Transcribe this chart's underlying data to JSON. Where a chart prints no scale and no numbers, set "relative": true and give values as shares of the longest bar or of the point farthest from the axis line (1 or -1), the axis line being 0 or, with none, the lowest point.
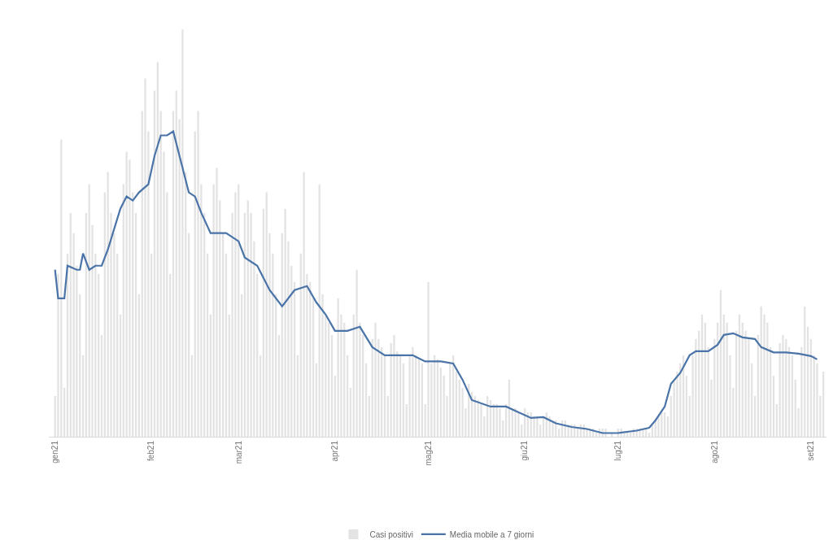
{
  "chart_data": {
    "type": "bar",
    "relative": true,
    "legend": "bottom",
    "grid": false,
    "xlim": [
      "2020-12-30",
      "2021-09-06"
    ],
    "xticks": [
      {
        "value": "2021-01-01",
        "label": "gen21"
      },
      {
        "value": "2021-02-01",
        "label": "feb21"
      },
      {
        "value": "2021-03-01",
        "label": "mar21"
      },
      {
        "value": "2021-04-01",
        "label": "apr21"
      },
      {
        "value": "2021-05-01",
        "label": "mag21"
      },
      {
        "value": "2021-06-01",
        "label": "giu21"
      },
      {
        "value": "2021-07-01",
        "label": "lug21"
      },
      {
        "value": "2021-08-01",
        "label": "ago21"
      },
      {
        "value": "2021-09-01",
        "label": "set21"
      }
    ],
    "x": [
      "2021-01-01",
      "2021-01-02",
      "2021-01-03",
      "2021-01-04",
      "2021-01-05",
      "2021-01-06",
      "2021-01-07",
      "2021-01-08",
      "2021-01-09",
      "2021-01-10",
      "2021-01-11",
      "2021-01-12",
      "2021-01-13",
      "2021-01-14",
      "2021-01-15",
      "2021-01-16",
      "2021-01-17",
      "2021-01-18",
      "2021-01-19",
      "2021-01-20",
      "2021-01-21",
      "2021-01-22",
      "2021-01-23",
      "2021-01-24",
      "2021-01-25",
      "2021-01-26",
      "2021-01-27",
      "2021-01-28",
      "2021-01-29",
      "2021-01-30",
      "2021-01-31",
      "2021-02-01",
      "2021-02-02",
      "2021-02-03",
      "2021-02-04",
      "2021-02-05",
      "2021-02-06",
      "2021-02-07",
      "2021-02-08",
      "2021-02-09",
      "2021-02-10",
      "2021-02-11",
      "2021-02-12",
      "2021-02-13",
      "2021-02-14",
      "2021-02-15",
      "2021-02-16",
      "2021-02-17",
      "2021-02-18",
      "2021-02-19",
      "2021-02-20",
      "2021-02-21",
      "2021-02-22",
      "2021-02-23",
      "2021-02-24",
      "2021-02-25",
      "2021-02-26",
      "2021-02-27",
      "2021-02-28",
      "2021-03-01",
      "2021-03-02",
      "2021-03-03",
      "2021-03-04",
      "2021-03-05",
      "2021-03-06",
      "2021-03-07",
      "2021-03-08",
      "2021-03-09",
      "2021-03-10",
      "2021-03-11",
      "2021-03-12",
      "2021-03-13",
      "2021-03-14",
      "2021-03-15",
      "2021-03-16",
      "2021-03-17",
      "2021-03-18",
      "2021-03-19",
      "2021-03-20",
      "2021-03-21",
      "2021-03-22",
      "2021-03-23",
      "2021-03-24",
      "2021-03-25",
      "2021-03-26",
      "2021-03-27",
      "2021-03-28",
      "2021-03-29",
      "2021-03-30",
      "2021-03-31",
      "2021-04-01",
      "2021-04-02",
      "2021-04-03",
      "2021-04-04",
      "2021-04-05",
      "2021-04-06",
      "2021-04-07",
      "2021-04-08",
      "2021-04-09",
      "2021-04-10",
      "2021-04-11",
      "2021-04-12",
      "2021-04-13",
      "2021-04-14",
      "2021-04-15",
      "2021-04-16",
      "2021-04-17",
      "2021-04-18",
      "2021-04-19",
      "2021-04-20",
      "2021-04-21",
      "2021-04-22",
      "2021-04-23",
      "2021-04-24",
      "2021-04-25",
      "2021-04-26",
      "2021-04-27",
      "2021-04-28",
      "2021-04-29",
      "2021-04-30",
      "2021-05-01",
      "2021-05-02",
      "2021-05-03",
      "2021-05-04",
      "2021-05-05",
      "2021-05-06",
      "2021-05-07",
      "2021-05-08",
      "2021-05-09",
      "2021-05-10",
      "2021-05-11",
      "2021-05-12",
      "2021-05-13",
      "2021-05-14",
      "2021-05-15",
      "2021-05-16",
      "2021-05-17",
      "2021-05-18",
      "2021-05-19",
      "2021-05-20",
      "2021-05-21",
      "2021-05-22",
      "2021-05-23",
      "2021-05-24",
      "2021-05-25",
      "2021-05-26",
      "2021-05-27",
      "2021-05-28",
      "2021-05-29",
      "2021-05-30",
      "2021-05-31",
      "2021-06-01",
      "2021-06-02",
      "2021-06-03",
      "2021-06-04",
      "2021-06-05",
      "2021-06-06",
      "2021-06-07",
      "2021-06-08",
      "2021-06-09",
      "2021-06-10",
      "2021-06-11",
      "2021-06-12",
      "2021-06-13",
      "2021-06-14",
      "2021-06-15",
      "2021-06-16",
      "2021-06-17",
      "2021-06-18",
      "2021-06-19",
      "2021-06-20",
      "2021-06-21",
      "2021-06-22",
      "2021-06-23",
      "2021-06-24",
      "2021-06-25",
      "2021-06-26",
      "2021-06-27",
      "2021-06-28",
      "2021-06-29",
      "2021-06-30",
      "2021-07-01",
      "2021-07-02",
      "2021-07-03",
      "2021-07-04",
      "2021-07-05",
      "2021-07-06",
      "2021-07-07",
      "2021-07-08",
      "2021-07-09",
      "2021-07-10",
      "2021-07-11",
      "2021-07-12",
      "2021-07-13",
      "2021-07-14",
      "2021-07-15",
      "2021-07-16",
      "2021-07-17",
      "2021-07-18",
      "2021-07-19",
      "2021-07-20",
      "2021-07-21",
      "2021-07-22",
      "2021-07-23",
      "2021-07-24",
      "2021-07-25",
      "2021-07-26",
      "2021-07-27",
      "2021-07-28",
      "2021-07-29",
      "2021-07-30",
      "2021-07-31",
      "2021-08-01",
      "2021-08-02",
      "2021-08-03",
      "2021-08-04",
      "2021-08-05",
      "2021-08-06",
      "2021-08-07",
      "2021-08-08",
      "2021-08-09",
      "2021-08-10",
      "2021-08-11",
      "2021-08-12",
      "2021-08-13",
      "2021-08-14",
      "2021-08-15",
      "2021-08-16",
      "2021-08-17",
      "2021-08-18",
      "2021-08-19",
      "2021-08-20",
      "2021-08-21",
      "2021-08-22",
      "2021-08-23",
      "2021-08-24",
      "2021-08-25",
      "2021-08-26",
      "2021-08-27",
      "2021-08-28",
      "2021-08-29",
      "2021-08-30",
      "2021-08-31",
      "2021-09-01",
      "2021-09-02",
      "2021-09-03",
      "2021-09-04",
      "2021-09-05"
    ],
    "series": [
      {
        "name": "Casi positivi",
        "color": "#e3e3e3",
        "values": [
          0.1,
          0.4,
          0.73,
          0.12,
          0.45,
          0.55,
          0.5,
          0.42,
          0.35,
          0.2,
          0.55,
          0.62,
          0.52,
          0.45,
          0.4,
          0.25,
          0.6,
          0.65,
          0.55,
          0.5,
          0.45,
          0.3,
          0.62,
          0.7,
          0.68,
          0.6,
          0.55,
          0.35,
          0.8,
          0.88,
          0.75,
          0.45,
          0.85,
          0.92,
          0.8,
          0.7,
          0.6,
          0.4,
          0.8,
          0.85,
          0.78,
          1.0,
          0.65,
          0.5,
          0.2,
          0.75,
          0.8,
          0.62,
          0.55,
          0.45,
          0.3,
          0.62,
          0.66,
          0.58,
          0.5,
          0.45,
          0.3,
          0.55,
          0.6,
          0.62,
          0.35,
          0.55,
          0.58,
          0.55,
          0.48,
          0.4,
          0.2,
          0.56,
          0.6,
          0.5,
          0.45,
          0.35,
          0.25,
          0.5,
          0.56,
          0.48,
          0.42,
          0.38,
          0.2,
          0.45,
          0.65,
          0.4,
          0.38,
          0.34,
          0.18,
          0.62,
          0.35,
          0.3,
          0.28,
          0.25,
          0.15,
          0.34,
          0.3,
          0.28,
          0.2,
          0.12,
          0.3,
          0.41,
          0.28,
          0.25,
          0.18,
          0.1,
          0.24,
          0.28,
          0.24,
          0.22,
          0.2,
          0.1,
          0.23,
          0.25,
          0.21,
          0.2,
          0.18,
          0.08,
          0.2,
          0.22,
          0.2,
          0.19,
          0.18,
          0.08,
          0.38,
          0.18,
          0.2,
          0.19,
          0.17,
          0.15,
          0.1,
          0.18,
          0.2,
          0.16,
          0.14,
          0.12,
          0.07,
          0.13,
          0.11,
          0.1,
          0.09,
          0.08,
          0.05,
          0.1,
          0.09,
          0.08,
          0.08,
          0.07,
          0.04,
          0.08,
          0.14,
          0.07,
          0.07,
          0.06,
          0.03,
          0.07,
          0.06,
          0.06,
          0.05,
          0.05,
          0.03,
          0.05,
          0.06,
          0.05,
          0.04,
          0.04,
          0.02,
          0.04,
          0.04,
          0.03,
          0.03,
          0.03,
          0.02,
          0.03,
          0.03,
          0.02,
          0.02,
          0.02,
          0.01,
          0.02,
          0.02,
          0.02,
          null,
          0.01,
          null,
          0.02,
          0.02,
          0.01,
          0.01,
          0.01,
          0.02,
          0.02,
          0.02,
          0.02,
          0.02,
          0.01,
          0.03,
          0.04,
          0.05,
          0.06,
          0.06,
          0.05,
          0.1,
          0.14,
          0.16,
          0.18,
          0.2,
          0.15,
          0.1,
          0.2,
          0.24,
          0.26,
          0.3,
          0.28,
          0.22,
          0.14,
          0.24,
          0.28,
          0.36,
          0.3,
          0.28,
          0.2,
          0.12,
          0.26,
          0.3,
          0.28,
          0.26,
          0.24,
          0.18,
          0.1,
          0.25,
          0.32,
          0.3,
          0.28,
          0.22,
          0.15,
          0.08,
          0.23,
          0.25,
          0.24,
          0.22,
          0.2,
          0.14,
          0.07,
          0.22,
          0.32,
          0.27,
          0.24,
          0.2,
          0.18,
          0.1,
          0.16
        ]
      },
      {
        "name": "Media mobile a 7 giorni",
        "type": "line",
        "color": "#4a74a8",
        "marker": "none",
        "line_style": "solid",
        "x": [
          "2021-01-01",
          "2021-01-02",
          "2021-01-04",
          "2021-01-05",
          "2021-01-08",
          "2021-01-09",
          "2021-01-10",
          "2021-01-12",
          "2021-01-14",
          "2021-01-16",
          "2021-01-18",
          "2021-01-20",
          "2021-01-22",
          "2021-01-24",
          "2021-01-26",
          "2021-01-28",
          "2021-01-31",
          "2021-02-02",
          "2021-02-04",
          "2021-02-06",
          "2021-02-08",
          "2021-02-11",
          "2021-02-13",
          "2021-02-15",
          "2021-02-17",
          "2021-02-20",
          "2021-02-22",
          "2021-02-25",
          "2021-03-01",
          "2021-03-03",
          "2021-03-07",
          "2021-03-11",
          "2021-03-15",
          "2021-03-19",
          "2021-03-23",
          "2021-03-26",
          "2021-03-29",
          "2021-04-01",
          "2021-04-05",
          "2021-04-09",
          "2021-04-13",
          "2021-04-17",
          "2021-04-22",
          "2021-04-26",
          "2021-04-30",
          "2021-05-05",
          "2021-05-09",
          "2021-05-12",
          "2021-05-15",
          "2021-05-21",
          "2021-05-26",
          "2021-05-30",
          "2021-06-03",
          "2021-06-07",
          "2021-06-11",
          "2021-06-16",
          "2021-06-21",
          "2021-06-26",
          "2021-07-01",
          "2021-07-07",
          "2021-07-11",
          "2021-07-13",
          "2021-07-16",
          "2021-07-18",
          "2021-07-21",
          "2021-07-24",
          "2021-07-26",
          "2021-07-30",
          "2021-08-02",
          "2021-08-04",
          "2021-08-07",
          "2021-08-10",
          "2021-08-14",
          "2021-08-16",
          "2021-08-20",
          "2021-08-24",
          "2021-08-28",
          "2021-09-01",
          "2021-09-03"
        ],
        "values": [
          0.41,
          0.34,
          0.34,
          0.42,
          0.41,
          0.41,
          0.45,
          0.41,
          0.42,
          0.42,
          0.46,
          0.51,
          0.56,
          0.59,
          0.58,
          0.6,
          0.62,
          0.69,
          0.74,
          0.74,
          0.75,
          0.66,
          0.6,
          0.59,
          0.55,
          0.5,
          0.5,
          0.5,
          0.48,
          0.44,
          0.42,
          0.36,
          0.32,
          0.36,
          0.37,
          0.33,
          0.3,
          0.26,
          0.26,
          0.27,
          0.22,
          0.2,
          0.2,
          0.2,
          0.185,
          0.185,
          0.18,
          0.14,
          0.09,
          0.074,
          0.074,
          0.06,
          0.046,
          0.048,
          0.033,
          0.024,
          0.019,
          0.009,
          0.009,
          0.015,
          0.022,
          0.04,
          0.074,
          0.13,
          0.157,
          0.2,
          0.21,
          0.21,
          0.226,
          0.25,
          0.254,
          0.244,
          0.24,
          0.22,
          0.207,
          0.207,
          0.204,
          0.198,
          0.19
        ]
      }
    ]
  }
}
